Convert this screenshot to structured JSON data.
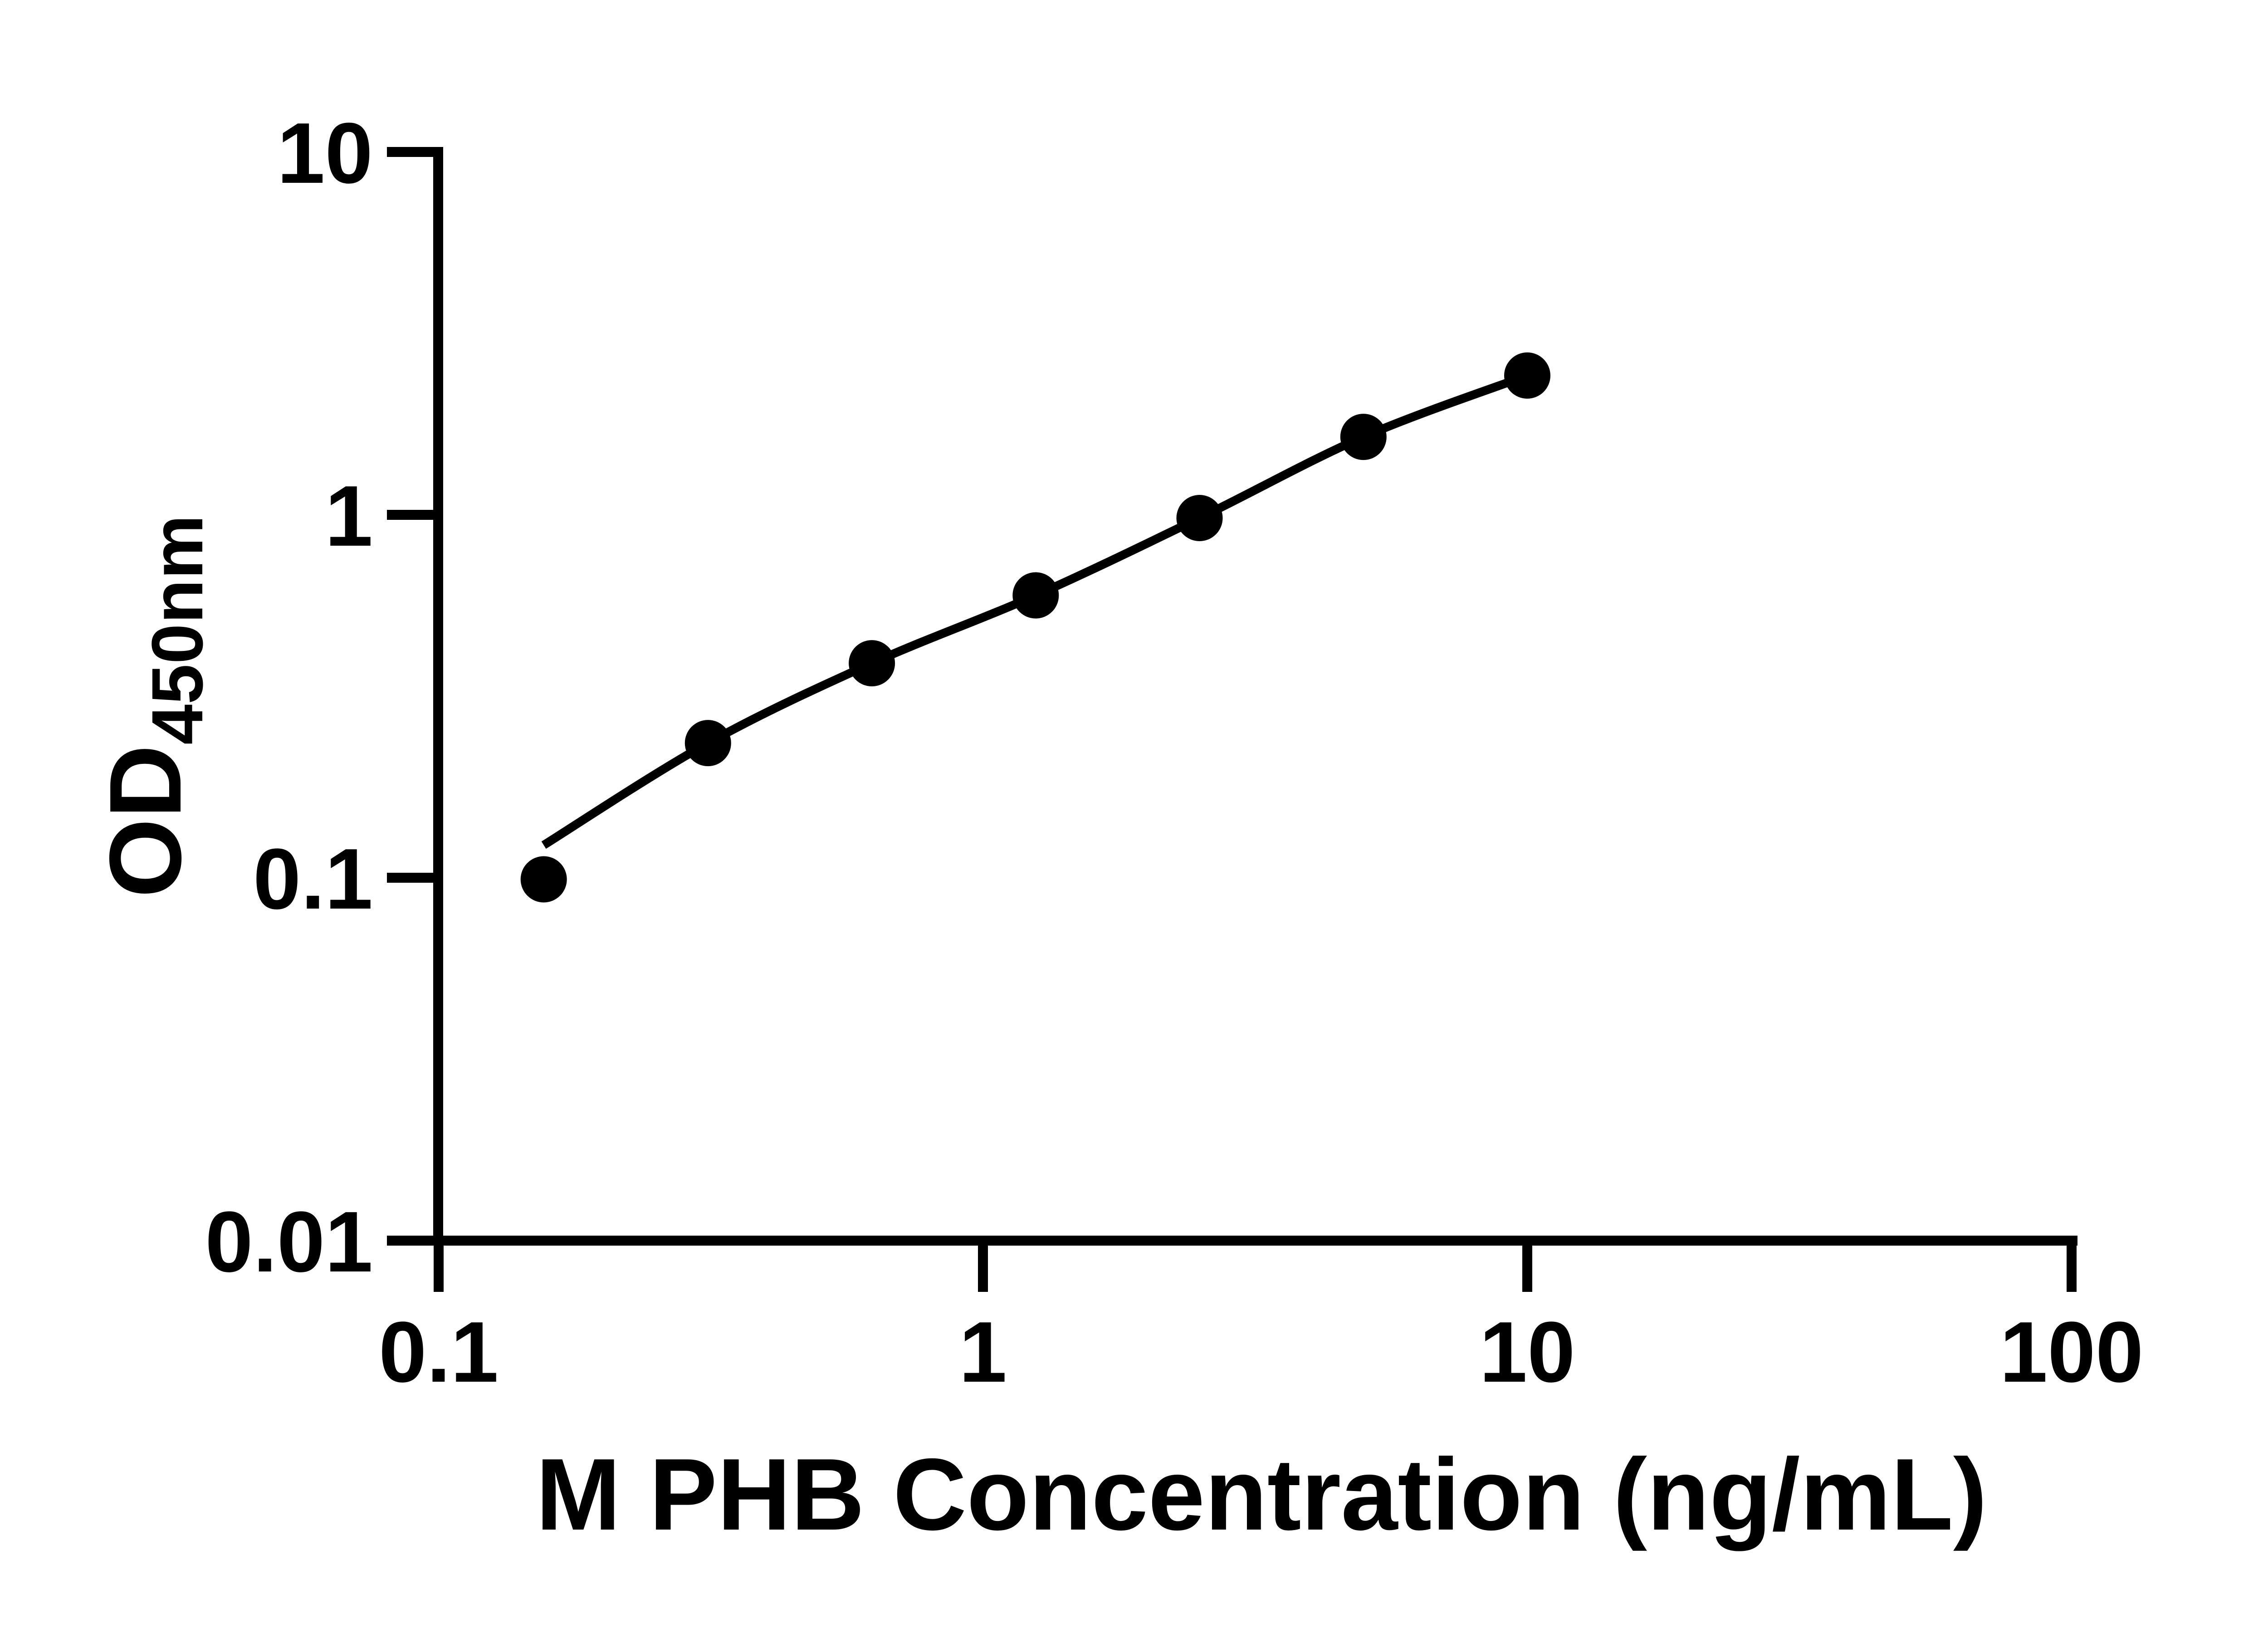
{
  "figure": {
    "background_color": "#ffffff",
    "ink_color": "#000000"
  },
  "chart_data": {
    "type": "scatter",
    "title": "",
    "xlabel": "M PHB Concentration (ng/mL)",
    "ylabel_main": "OD",
    "ylabel_sub": "450nm",
    "x_scale": "log",
    "y_scale": "log",
    "xlim": [
      0.1,
      100
    ],
    "ylim": [
      0.01,
      10
    ],
    "grid": false,
    "legend": "none",
    "x_ticks": {
      "values": [
        0.1,
        1,
        10,
        100
      ],
      "labels": [
        "0.1",
        "1",
        "10",
        "100"
      ]
    },
    "y_ticks": {
      "values": [
        10,
        1,
        0.1,
        0.01
      ],
      "labels": [
        "10",
        "1",
        "0.1",
        "0.01"
      ]
    },
    "series": [
      {
        "name": "standard-points",
        "type": "scatter",
        "marker": "filled-circle",
        "color": "#000000",
        "x": [
          0.156,
          0.3125,
          0.625,
          1.25,
          2.5,
          5,
          10
        ],
        "y": [
          0.099,
          0.235,
          0.39,
          0.6,
          0.98,
          1.64,
          2.42
        ]
      },
      {
        "name": "fitted-curve",
        "type": "line",
        "color": "#000000",
        "x": [
          0.156,
          0.3125,
          0.625,
          1.25,
          2.5,
          5,
          10
        ],
        "y": [
          0.123,
          0.235,
          0.39,
          0.6,
          0.98,
          1.64,
          2.42
        ]
      }
    ]
  }
}
